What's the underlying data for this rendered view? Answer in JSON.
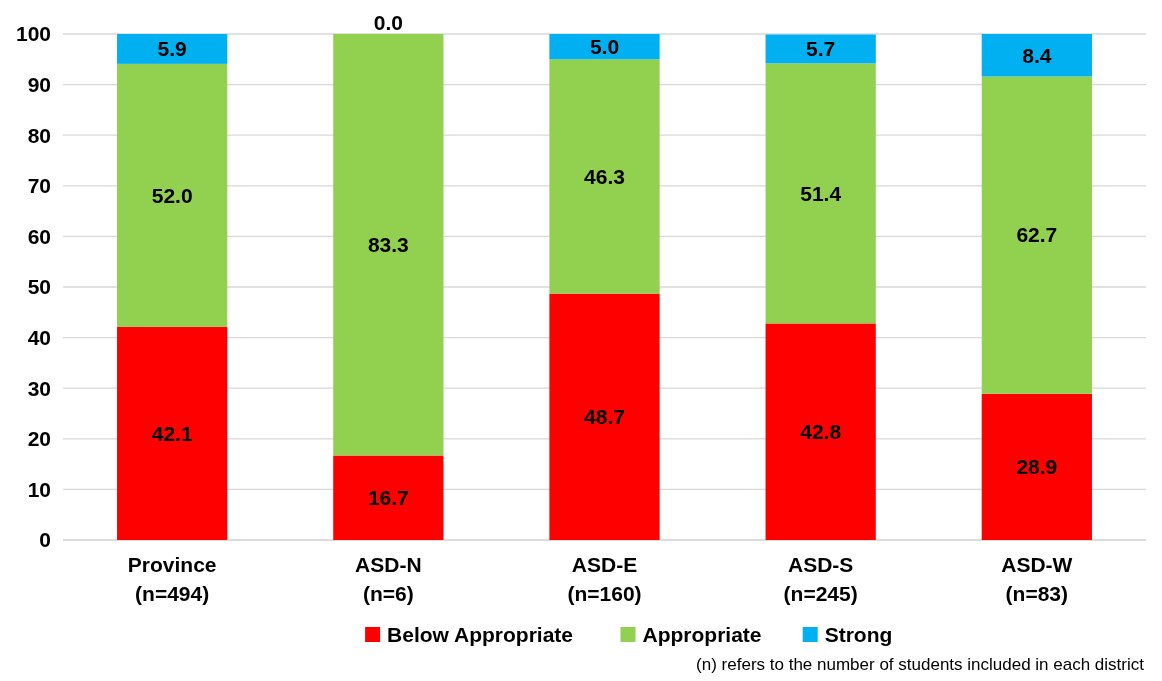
{
  "chart_data": {
    "type": "bar",
    "stacked": true,
    "categories": [
      "Province\n(n=494)",
      "ASD-N\n(n=6)",
      "ASD-E\n(n=160)",
      "ASD-S\n(n=245)",
      "ASD-W\n(n=83)"
    ],
    "series": [
      {
        "name": "Below Appropriate",
        "color": "#ff0000",
        "values": [
          42.1,
          16.7,
          48.7,
          42.8,
          28.9
        ],
        "value_labels": [
          "42.1",
          "16.7",
          "48.7",
          "42.8",
          "28.9"
        ]
      },
      {
        "name": "Appropriate",
        "color": "#92d050",
        "values": [
          52.0,
          83.3,
          46.3,
          51.4,
          62.7
        ],
        "value_labels": [
          "52.0",
          "83.3",
          "46.3",
          "51.4",
          "62.7"
        ]
      },
      {
        "name": "Strong",
        "color": "#00b0f0",
        "values": [
          5.9,
          0.0,
          5.0,
          5.7,
          8.4
        ],
        "value_labels": [
          "5.9",
          "0.0",
          "5.0",
          "5.7",
          "8.4"
        ]
      }
    ],
    "ylim": [
      0,
      100
    ],
    "yticks": [
      0,
      10,
      20,
      30,
      40,
      50,
      60,
      70,
      80,
      90,
      100
    ],
    "grid": "y",
    "legend": "bottom",
    "annotations": [
      "(n) refers to the number of students included in each district"
    ]
  }
}
